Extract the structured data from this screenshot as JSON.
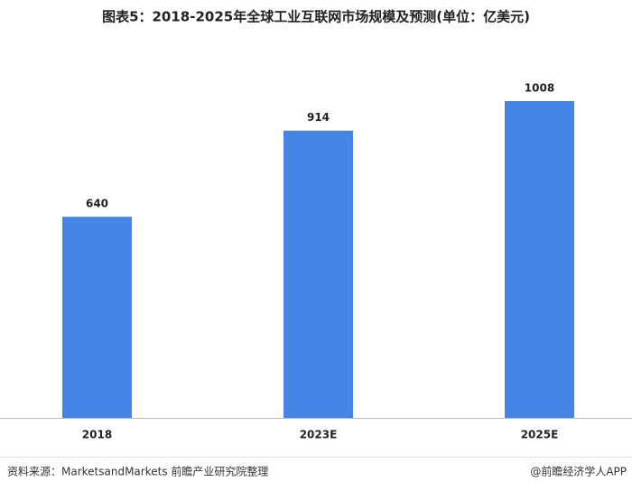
{
  "chart_data": {
    "type": "bar",
    "title": "图表5：2018-2025年全球工业互联网市场规模及预测(单位：亿美元)",
    "categories": [
      "2018",
      "2023E",
      "2025E"
    ],
    "values": [
      640,
      914,
      1008
    ],
    "color": "#4485e6"
  },
  "footer": {
    "source": "资料来源：MarketsandMarkets 前瞻产业研究院整理",
    "credit": "@前瞻经济学人APP"
  }
}
